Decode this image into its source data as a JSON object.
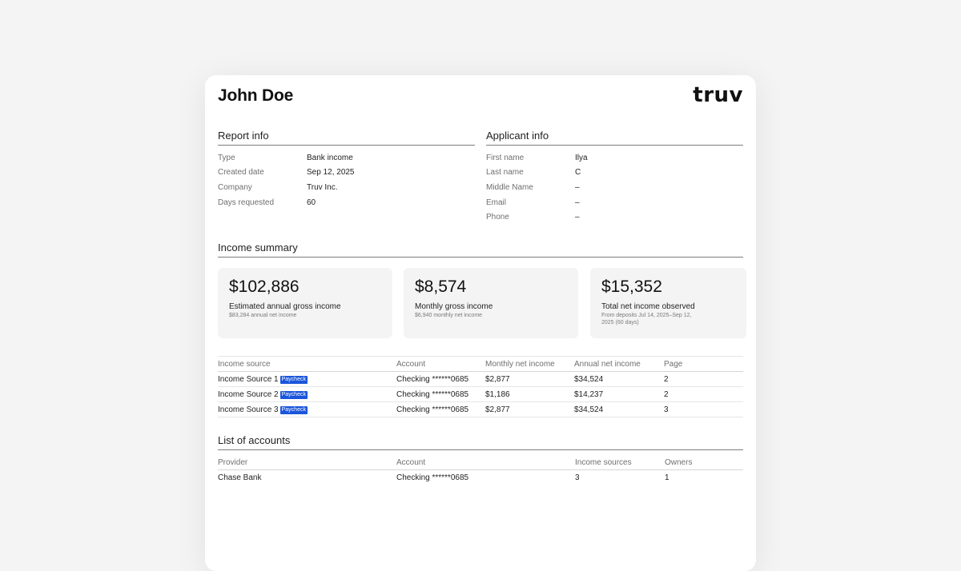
{
  "header": {
    "name": "John Doe",
    "logo": "truv"
  },
  "report_info": {
    "title": "Report info",
    "rows": [
      {
        "label": "Type",
        "value": "Bank income"
      },
      {
        "label": "Created date",
        "value": "Sep 12, 2025"
      },
      {
        "label": "Company",
        "value": "Truv Inc."
      },
      {
        "label": "Days requested",
        "value": "60"
      }
    ]
  },
  "applicant_info": {
    "title": "Applicant info",
    "rows": [
      {
        "label": "First name",
        "value": "Ilya"
      },
      {
        "label": "Last name",
        "value": "C"
      },
      {
        "label": "Middle Name",
        "value": "–"
      },
      {
        "label": "Email",
        "value": "–"
      },
      {
        "label": "Phone",
        "value": "–"
      }
    ]
  },
  "income_summary": {
    "title": "Income summary",
    "tiles": [
      {
        "amount": "$102,886",
        "label": "Estimated annual gross income",
        "sub": "$83,284 annual net income"
      },
      {
        "amount": "$8,574",
        "label": "Monthly gross income",
        "sub": "$6,940 monthly net income"
      },
      {
        "amount": "$15,352",
        "label": "Total net income observed",
        "sub": "From deposits Jul 14, 2025–Sep 12, 2025 (60 days)"
      }
    ]
  },
  "income_table": {
    "headers": [
      "Income source",
      "Account",
      "Monthly net income",
      "Annual net income",
      "Page"
    ],
    "badge": "Paycheck",
    "rows": [
      {
        "source": "Income Source 1",
        "account": "Checking ******0685",
        "monthly": "$2,877",
        "annual": "$34,524",
        "page": "2"
      },
      {
        "source": "Income Source 2",
        "account": "Checking ******0685",
        "monthly": "$1,186",
        "annual": "$14,237",
        "page": "2"
      },
      {
        "source": "Income Source 3",
        "account": "Checking ******0685",
        "monthly": "$2,877",
        "annual": "$34,524",
        "page": "3"
      }
    ]
  },
  "accounts": {
    "title": "List of accounts",
    "headers": [
      "Provider",
      "Account",
      "Income sources",
      "Owners"
    ],
    "rows": [
      {
        "provider": "Chase Bank",
        "account": "Checking ******0685",
        "income_sources": "3",
        "owners": "1"
      }
    ]
  }
}
